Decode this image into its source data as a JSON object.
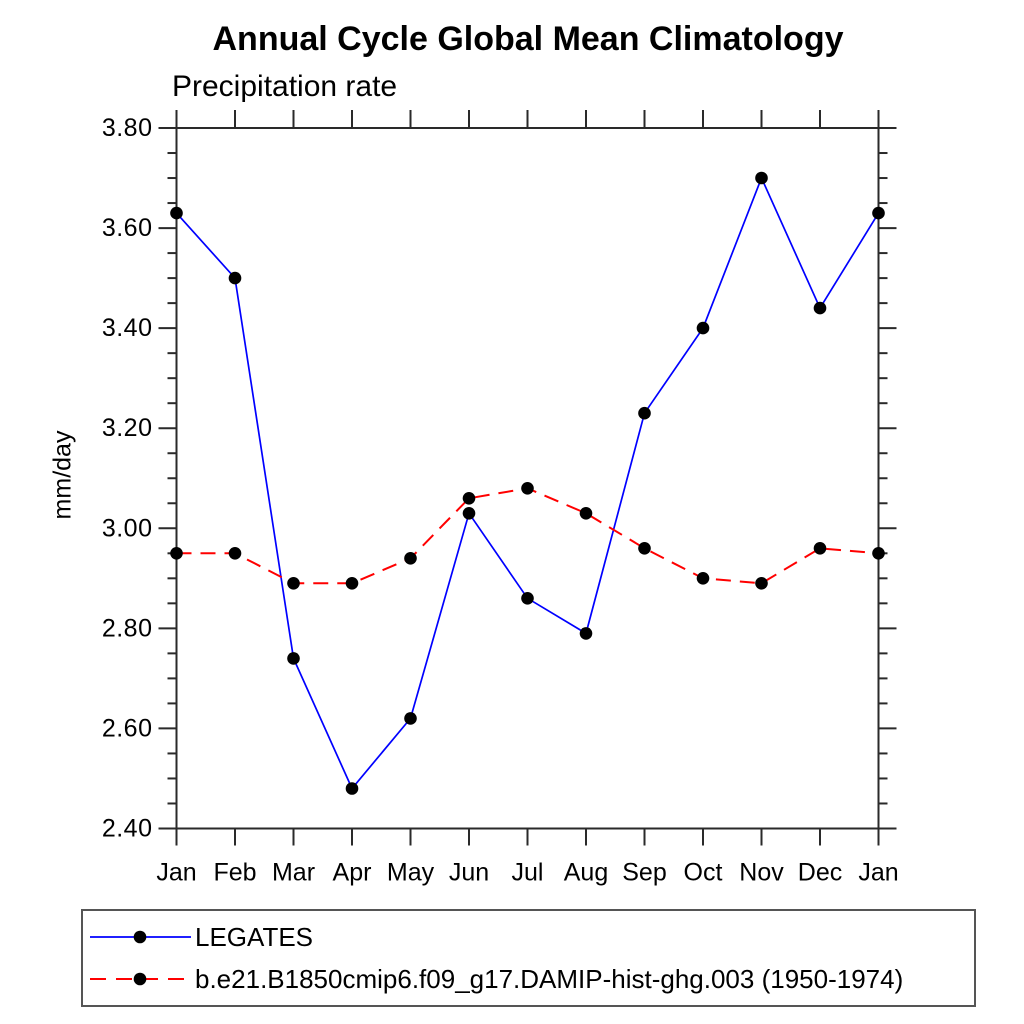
{
  "title": "Annual Cycle Global Mean Climatology",
  "subtitle": "Precipitation rate",
  "ylabel": "mm/day",
  "colors": {
    "background": "#ffffff",
    "axis": "#2a2a2a",
    "marker": "#000000",
    "legend_border": "#555555",
    "series_blue": "#0000ff",
    "series_red": "#ff0000"
  },
  "chart_data": {
    "type": "line",
    "title": "Annual Cycle Global Mean Climatology",
    "subtitle": "Precipitation rate",
    "xlabel": "",
    "ylabel": "mm/day",
    "x_categories": [
      "Jan",
      "Feb",
      "Mar",
      "Apr",
      "May",
      "Jun",
      "Jul",
      "Aug",
      "Sep",
      "Oct",
      "Nov",
      "Dec",
      "Jan"
    ],
    "ylim": [
      2.4,
      3.8
    ],
    "y_major_step": 0.2,
    "y_minor_step": 0.05,
    "y_tick_labels": [
      "2.40",
      "2.60",
      "2.80",
      "3.00",
      "3.20",
      "3.40",
      "3.60",
      "3.80"
    ],
    "grid": false,
    "legend_position": "bottom",
    "series": [
      {
        "name": "LEGATES",
        "color": "#0000ff",
        "line_style": "solid",
        "marker": "filled-circle",
        "marker_color": "#000000",
        "values": [
          3.63,
          3.5,
          2.74,
          2.48,
          2.62,
          3.03,
          2.86,
          2.79,
          3.23,
          3.4,
          3.7,
          3.44,
          3.63
        ]
      },
      {
        "name": "b.e21.B1850cmip6.f09_g17.DAMIP-hist-ghg.003 (1950-1974)",
        "color": "#ff0000",
        "line_style": "dashed",
        "marker": "filled-circle",
        "marker_color": "#000000",
        "values": [
          2.95,
          2.95,
          2.89,
          2.89,
          2.94,
          3.06,
          3.08,
          3.03,
          2.96,
          2.9,
          2.89,
          2.96,
          2.95
        ]
      }
    ]
  }
}
